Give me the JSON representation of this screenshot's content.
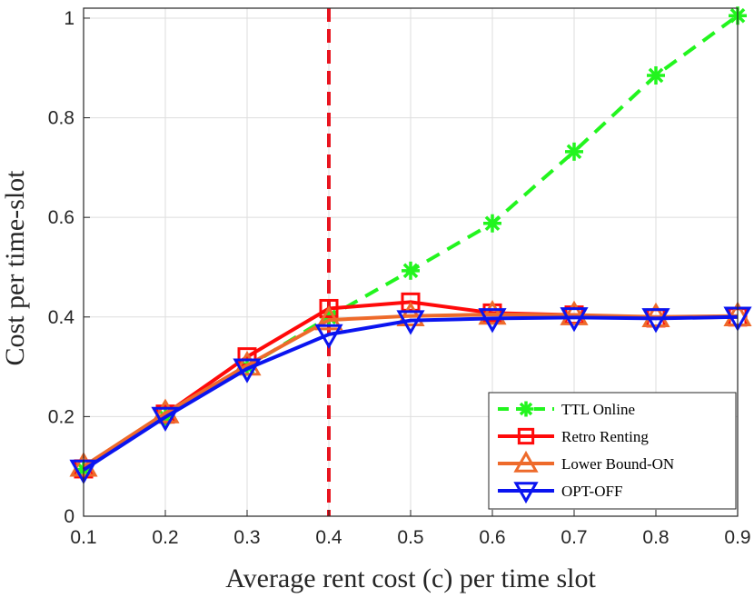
{
  "chart_data": {
    "type": "line",
    "title": "",
    "xlabel": "Average rent cost (c) per time slot",
    "ylabel": "Cost per time-slot",
    "x": [
      0.1,
      0.2,
      0.3,
      0.4,
      0.5,
      0.6,
      0.7,
      0.8,
      0.9
    ],
    "xticks": [
      "0.1",
      "0.2",
      "0.3",
      "0.4",
      "0.5",
      "0.6",
      "0.7",
      "0.8",
      "0.9"
    ],
    "yticks": [
      "0",
      "0.2",
      "0.4",
      "0.6",
      "0.8",
      "1"
    ],
    "xlim": [
      0.1,
      0.9
    ],
    "ylim": [
      0,
      1.02
    ],
    "grid": true,
    "legend_position": "bottom-right",
    "vertical_line": {
      "x": 0.4,
      "color": "#e8141f",
      "style": "dashed"
    },
    "series": [
      {
        "name": "TTL Online",
        "color": "#22f51e",
        "style": "dashed",
        "marker": "asterisk",
        "values": [
          0.094,
          0.2,
          0.3,
          0.4,
          0.493,
          0.588,
          0.732,
          0.885,
          1.005
        ]
      },
      {
        "name": "Retro Renting",
        "color": "#ff0a0a",
        "style": "solid",
        "marker": "square",
        "values": [
          0.095,
          0.205,
          0.32,
          0.417,
          0.43,
          0.408,
          0.404,
          0.398,
          0.4
        ]
      },
      {
        "name": "Lower Bound-ON",
        "color": "#ee6a2b",
        "style": "solid",
        "marker": "triangle-up",
        "values": [
          0.1,
          0.207,
          0.303,
          0.394,
          0.402,
          0.405,
          0.404,
          0.4,
          0.402
        ]
      },
      {
        "name": "OPT-OFF",
        "color": "#0a14f0",
        "style": "solid",
        "marker": "triangle-down",
        "values": [
          0.093,
          0.199,
          0.296,
          0.365,
          0.393,
          0.397,
          0.399,
          0.397,
          0.4
        ]
      }
    ]
  }
}
